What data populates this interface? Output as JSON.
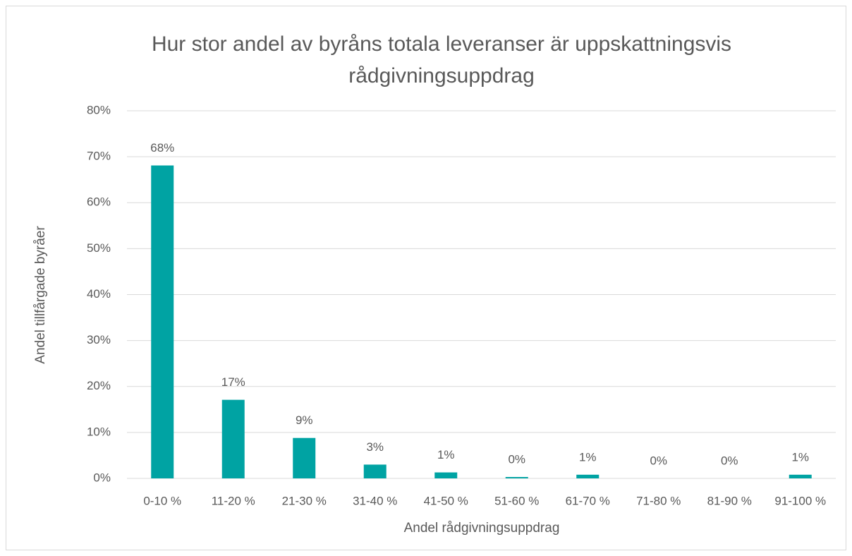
{
  "chart_data": {
    "type": "bar",
    "title": "Hur stor andel av byråns totala leveranser är uppskattningsvis rådgivningsuppdrag",
    "x_label": "Andel rådgivningsuppdrag",
    "y_label": "Andel tillfårgade byråer",
    "categories": [
      "0-10 %",
      "11-20 %",
      "21-30 %",
      "31-40 %",
      "41-50 %",
      "51-60 %",
      "61-70 %",
      "71-80 %",
      "81-90 %",
      "91-100 %"
    ],
    "values": [
      68.1,
      17.1,
      8.8,
      3.0,
      1.3,
      0.3,
      0.8,
      0,
      0,
      0.8
    ],
    "value_labels": [
      "68%",
      "17%",
      "9%",
      "3%",
      "1%",
      "0%",
      "1%",
      "0%",
      "0%",
      "1%"
    ],
    "color": "#00a3a3",
    "ylim": [
      0,
      80
    ],
    "yticks": [
      {
        "value": 0,
        "label": "0%"
      },
      {
        "value": 10,
        "label": "10%"
      },
      {
        "value": 20,
        "label": "20%"
      },
      {
        "value": 30,
        "label": "30%"
      },
      {
        "value": 40,
        "label": "40%"
      },
      {
        "value": 50,
        "label": "50%"
      },
      {
        "value": 60,
        "label": "60%"
      },
      {
        "value": 70,
        "label": "70%"
      },
      {
        "value": 80,
        "label": "80%"
      }
    ],
    "grid": true
  }
}
